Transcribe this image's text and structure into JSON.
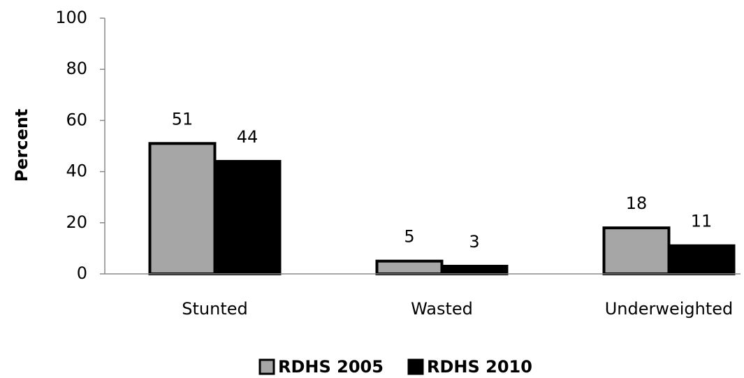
{
  "chart_data": {
    "type": "bar",
    "y_label": "Percent",
    "categories": [
      "Stunted",
      "Wasted",
      "Underweighted"
    ],
    "series": [
      {
        "name": "RDHS 2005",
        "color": "#a6a6a6",
        "values": [
          51,
          5,
          18
        ]
      },
      {
        "name": "RDHS 2010",
        "color": "#000000",
        "values": [
          44,
          3,
          11
        ]
      }
    ],
    "ylim": [
      0,
      100
    ],
    "yticks": [
      0,
      20,
      40,
      60,
      80,
      100
    ],
    "grid": false,
    "legend": "bottom"
  }
}
